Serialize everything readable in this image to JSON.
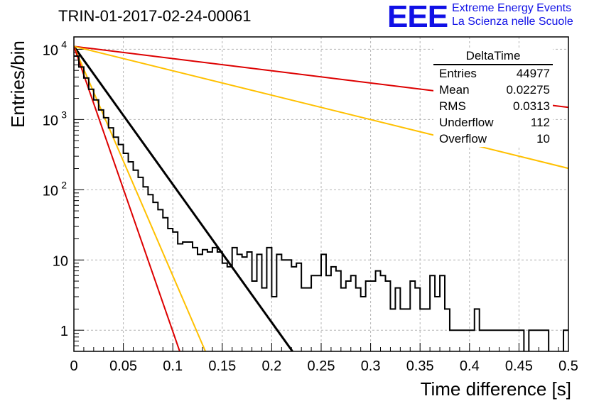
{
  "header": {
    "title": "TRIN-01-2017-02-24-00061",
    "logo": "EEE",
    "logo_line1": "Extreme Energy Events",
    "logo_line2": "La Scienza nelle Scuole"
  },
  "stats_box": {
    "title": "DeltaTime",
    "rows": [
      {
        "label": "Entries",
        "value": "44977"
      },
      {
        "label": "Mean",
        "value": "0.02275"
      },
      {
        "label": "RMS",
        "value": "0.0313"
      },
      {
        "label": "Underflow",
        "value": "112"
      },
      {
        "label": "Overflow",
        "value": "10"
      }
    ]
  },
  "colors": {
    "histogram": "#000000",
    "fit": "#000000",
    "red": "#dd0000",
    "orange": "#ffc000",
    "grid": "#b4b4b4",
    "logo": "#1010e6"
  },
  "chart_data": {
    "type": "histogram",
    "xlabel": "Time difference [s]",
    "ylabel": "Entries/bin",
    "xlim": [
      0,
      0.5
    ],
    "ylim": [
      0.5,
      15000
    ],
    "ylog": true,
    "grid": true,
    "legend": "top-right",
    "x_ticks": [
      "0",
      "0.05",
      "0.1",
      "0.15",
      "0.2",
      "0.25",
      "0.3",
      "0.35",
      "0.4",
      "0.45",
      "0.5"
    ],
    "y_ticks": [
      {
        "value": 1,
        "label": "1"
      },
      {
        "value": 10,
        "label": "10"
      },
      {
        "value": 100,
        "label": "10",
        "sup": "2"
      },
      {
        "value": 1000,
        "label": "10",
        "sup": "3"
      },
      {
        "value": 10000,
        "label": "10",
        "sup": "4"
      }
    ],
    "bin_width": 0.005,
    "counts": [
      8000,
      5600,
      3900,
      2700,
      1900,
      1370,
      1060,
      760,
      560,
      440,
      330,
      250,
      190,
      150,
      110,
      85,
      66,
      52,
      40,
      28,
      25,
      17,
      18,
      18,
      15,
      12,
      14,
      13,
      15,
      13,
      9,
      8,
      15,
      12,
      11,
      13,
      5,
      12,
      4,
      15,
      3,
      12,
      10,
      10,
      8,
      9,
      4,
      4,
      6,
      6,
      12,
      6,
      8,
      7,
      4,
      5,
      6,
      4,
      3,
      5,
      5,
      7,
      6,
      5,
      2,
      4,
      2,
      2,
      5,
      4,
      2,
      2,
      6,
      3,
      6,
      2,
      1,
      1,
      1,
      1,
      1,
      2,
      1,
      1,
      1,
      1,
      1,
      1,
      1,
      1,
      1,
      0,
      1,
      1,
      1,
      1,
      0,
      0,
      0,
      1
    ],
    "fits": [
      {
        "color": "black",
        "amplitude": 11000,
        "tau": 0.0221
      },
      {
        "color": "red",
        "amplitude": 11000,
        "tau": 0.25
      },
      {
        "color": "orange",
        "amplitude": 11000,
        "tau": 0.125
      },
      {
        "color": "orange",
        "amplitude": 11000,
        "tau": 0.0133
      },
      {
        "color": "red",
        "amplitude": 11000,
        "tau": 0.0107
      }
    ]
  }
}
